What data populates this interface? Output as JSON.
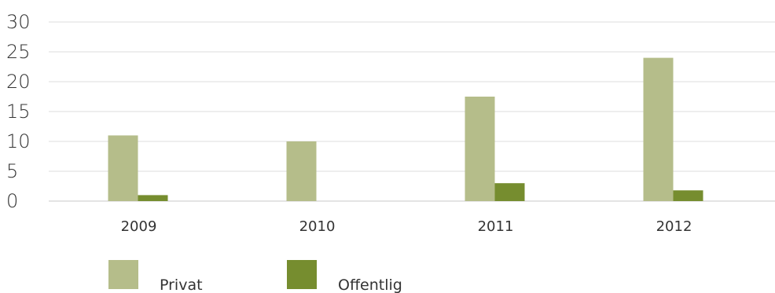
{
  "chart_data": {
    "type": "bar",
    "title": "",
    "xlabel": "",
    "ylabel": "",
    "categories": [
      "2009",
      "2010",
      "2011",
      "2012"
    ],
    "series": [
      {
        "name": "Privat",
        "color": "#b5bd8a",
        "values": [
          11,
          10,
          17.5,
          24
        ]
      },
      {
        "name": "Offentlig",
        "color": "#768d2f",
        "values": [
          1,
          0,
          3,
          1.8
        ]
      }
    ],
    "ylim": [
      0,
      30
    ],
    "yticks": [
      "0",
      "5",
      "10",
      "15",
      "20",
      "25",
      "30"
    ],
    "grid": true,
    "legend_position": "bottom-left"
  }
}
